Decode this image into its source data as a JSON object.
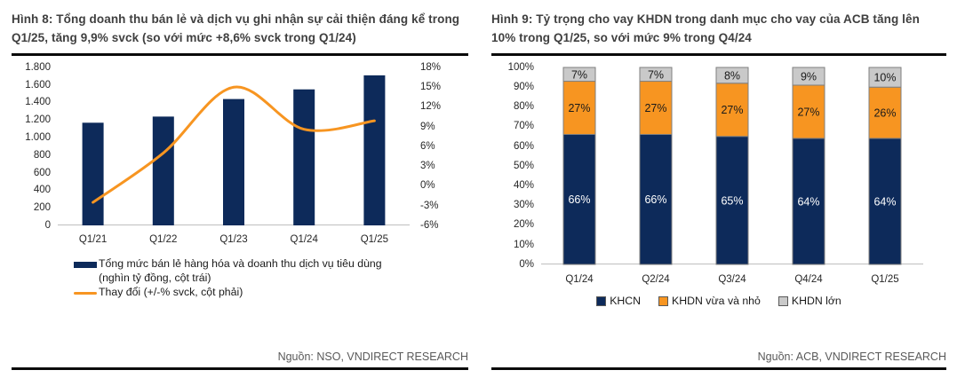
{
  "page": {
    "background": "#FFFFFF"
  },
  "colors": {
    "navy": "#0D2A5A",
    "orange": "#F79521",
    "gray": "#C9C9C9",
    "rule": "#0A0A0A",
    "title_text": "#3F3F3F",
    "source_text": "#595959",
    "axis_text": "#262626",
    "segment_border": "#7F7F7F",
    "baseline": "#BFBFBF"
  },
  "chart_data": [
    {
      "name": "figure-8",
      "type": "combo-bar-line",
      "title": "Hình 8: Tổng doanh thu bán lẻ và dịch vụ ghi nhận sự cải thiện đáng kể trong Q1/25, tăng 9,9% svck (so với mức +8,6% svck trong Q1/24)",
      "source": "Nguồn: NSO, VNDIRECT RESEARCH",
      "categories": [
        "Q1/21",
        "Q1/22",
        "Q1/23",
        "Q1/24",
        "Q1/25"
      ],
      "series": [
        {
          "name": "Tổng mức bán lẻ hàng hóa và doanh thu dịch vụ tiêu dùng (nghìn tỷ đồng, cột trái)",
          "kind": "bar",
          "axis": "left",
          "color": "#0D2A5A",
          "values": [
            1170,
            1240,
            1440,
            1550,
            1710
          ]
        },
        {
          "name": "Thay đổi (+/-% svck, cột phải)",
          "kind": "line",
          "axis": "right",
          "color": "#F79521",
          "values": [
            -2.5,
            5,
            15,
            8.6,
            9.9
          ]
        }
      ],
      "left_axis": {
        "min": 0,
        "max": 1800,
        "step": 200,
        "tick_labels": [
          "0",
          "200",
          "400",
          "600",
          "800",
          "1.000",
          "1.200",
          "1.400",
          "1.600",
          "1.800"
        ]
      },
      "right_axis": {
        "min": -6,
        "max": 18,
        "step": 3,
        "tick_labels": [
          "-6%",
          "-3%",
          "0%",
          "3%",
          "6%",
          "9%",
          "12%",
          "15%",
          "18%"
        ]
      },
      "grid": false,
      "legend_position": "bottom-left"
    },
    {
      "name": "figure-9",
      "type": "stacked-bar-100",
      "title": "Hình 9: Tỷ trọng cho vay KHDN trong danh mục cho vay của ACB tăng lên 10% trong Q1/25, so với mức 9% trong Q4/24",
      "source": "Nguồn: ACB, VNDIRECT RESEARCH",
      "categories": [
        "Q1/24",
        "Q2/24",
        "Q3/24",
        "Q4/24",
        "Q1/25"
      ],
      "series": [
        {
          "name": "KHCN",
          "color": "#0D2A5A",
          "label_color": "#FFFFFF",
          "values": [
            66,
            66,
            65,
            64,
            64
          ]
        },
        {
          "name": "KHDN vừa và nhỏ",
          "color": "#F79521",
          "label_color": "#1A1A1A",
          "values": [
            27,
            27,
            27,
            27,
            26
          ]
        },
        {
          "name": "KHDN lớn",
          "color": "#C9C9C9",
          "label_color": "#1A1A1A",
          "values": [
            7,
            7,
            8,
            9,
            10
          ]
        }
      ],
      "y_axis": {
        "min": 0,
        "max": 100,
        "step": 10,
        "tick_labels": [
          "0%",
          "10%",
          "20%",
          "30%",
          "40%",
          "50%",
          "60%",
          "70%",
          "80%",
          "90%",
          "100%"
        ]
      },
      "grid": false,
      "legend_position": "bottom-center"
    }
  ]
}
